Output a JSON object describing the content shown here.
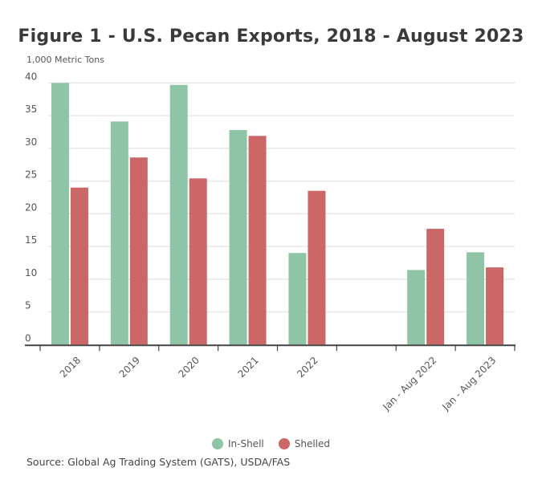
{
  "chart_data": {
    "type": "bar",
    "title": "Figure 1 - U.S. Pecan Exports, 2018 - August 2023",
    "ylabel": "1,000 Metric Tons",
    "xlabel": "",
    "ylim": [
      0,
      40
    ],
    "yticks": [
      "0",
      "5",
      "10",
      "15",
      "20",
      "25",
      "30",
      "35",
      "40"
    ],
    "grid": true,
    "legend_position": "bottom",
    "categories": [
      "2018",
      "2019",
      "2020",
      "2021",
      "2022",
      "",
      "Jan - Aug 2022",
      "Jan - Aug 2023"
    ],
    "series": [
      {
        "name": "In-Shell",
        "color": "#8fc4a7",
        "values": [
          40.0,
          34.1,
          39.7,
          32.8,
          14.0,
          null,
          11.4,
          14.1
        ]
      },
      {
        "name": "Shelled",
        "color": "#cc6767",
        "values": [
          24.0,
          28.6,
          25.4,
          31.9,
          23.5,
          null,
          17.7,
          11.8
        ]
      }
    ],
    "source": "Source: Global Ag Trading System (GATS), USDA/FAS"
  }
}
